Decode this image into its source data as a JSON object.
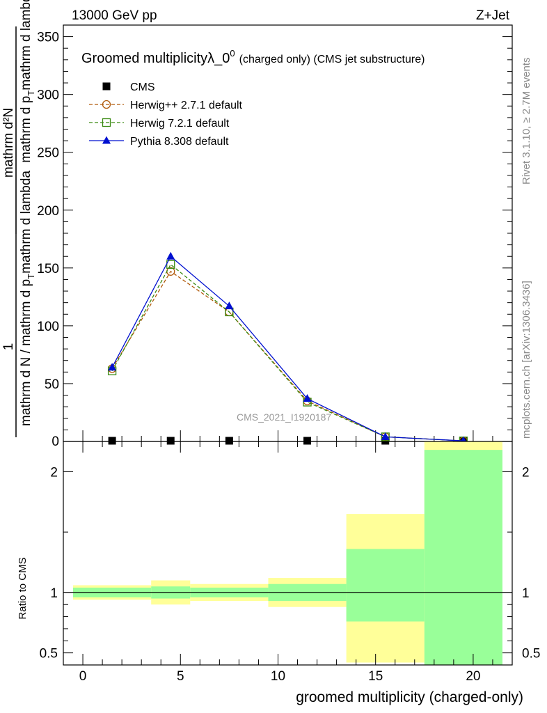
{
  "header": {
    "energy_label": "13000 GeV pp",
    "process_label": "Z+Jet"
  },
  "side_labels": {
    "rivet": "Rivet 3.1.10, ≥ 2.7M events",
    "mcplots": "mcplots.cern.ch [arXiv:1306.3436]"
  },
  "analysis_tag": "CMS_2021_I1920187",
  "chart_data": [
    {
      "type": "line",
      "title": "Groomed multiplicityλ_0",
      "title_sup": "0",
      "subtitle": "(charged only) (CMS jet substructure)",
      "ylabel": {
        "num": "mathrm d²N",
        "den_left": "mathrm d N / mathrm d p",
        "den_sub": "T",
        "den_right": "mathrm d lambda",
        "frac_num": "1",
        "frac_den": "mathrm d N / mathrm d p",
        "frac_den_sub": "T",
        "frac_den_right": "mathrm d p"
      },
      "xlim": [
        -1,
        22
      ],
      "ylim": [
        0,
        360
      ],
      "yticks": [
        50,
        100,
        150,
        200,
        250,
        300,
        350
      ],
      "legend_position": "top-left",
      "series": [
        {
          "name": "CMS",
          "color": "#000000",
          "marker": "square-filled",
          "line": "none",
          "x": [
            1.5,
            4.5,
            7.5,
            11.5,
            15.5,
            19.5
          ],
          "y": [
            0,
            0,
            0,
            0,
            0,
            0
          ]
        },
        {
          "name": "Herwig++ 2.7.1 default",
          "color": "#b15a0b",
          "marker": "circle-open",
          "line": "dashed",
          "x": [
            1.5,
            4.5,
            7.5,
            11.5,
            15.5,
            19.5
          ],
          "y": [
            63,
            147,
            112,
            35,
            4,
            0.5
          ]
        },
        {
          "name": "Herwig 7.2.1 default",
          "color": "#3a8a12",
          "marker": "square-open",
          "line": "dashed",
          "x": [
            1.5,
            4.5,
            7.5,
            11.5,
            15.5,
            19.5
          ],
          "y": [
            61,
            153,
            112,
            34,
            4,
            0.5
          ]
        },
        {
          "name": "Pythia 8.308 default",
          "color": "#0010d0",
          "marker": "triangle-filled",
          "line": "solid",
          "x": [
            1.5,
            4.5,
            7.5,
            11.5,
            15.5,
            19.5
          ],
          "y": [
            64,
            160,
            117,
            37,
            4,
            0.5
          ]
        }
      ]
    },
    {
      "type": "area",
      "ylabel": "Ratio to CMS",
      "xlabel": "groomed multiplicity (charged-only)",
      "xlim": [
        -1,
        22
      ],
      "ylim": [
        0.4,
        2.25
      ],
      "xticks": [
        0,
        5,
        10,
        15,
        20
      ],
      "yticks": [
        0.5,
        1,
        2
      ],
      "reference_line": 1,
      "bands": [
        {
          "x_lo": -0.5,
          "x_hi": 3.5,
          "yellow": [
            0.94,
            1.06
          ],
          "green": [
            0.96,
            1.04
          ]
        },
        {
          "x_lo": 3.5,
          "x_hi": 5.5,
          "yellow": [
            0.9,
            1.1
          ],
          "green": [
            0.95,
            1.05
          ]
        },
        {
          "x_lo": 5.5,
          "x_hi": 9.5,
          "yellow": [
            0.93,
            1.07
          ],
          "green": [
            0.96,
            1.04
          ]
        },
        {
          "x_lo": 9.5,
          "x_hi": 13.5,
          "yellow": [
            0.88,
            1.12
          ],
          "green": [
            0.93,
            1.07
          ]
        },
        {
          "x_lo": 13.5,
          "x_hi": 17.5,
          "yellow": [
            0.42,
            1.65
          ],
          "green": [
            0.76,
            1.36
          ]
        },
        {
          "x_lo": 17.5,
          "x_hi": 21.5,
          "yellow": [
            0.4,
            2.25
          ],
          "green": [
            0.4,
            2.18
          ]
        }
      ],
      "band_colors": {
        "yellow": "#ffff99",
        "green": "#99ff99"
      }
    }
  ]
}
